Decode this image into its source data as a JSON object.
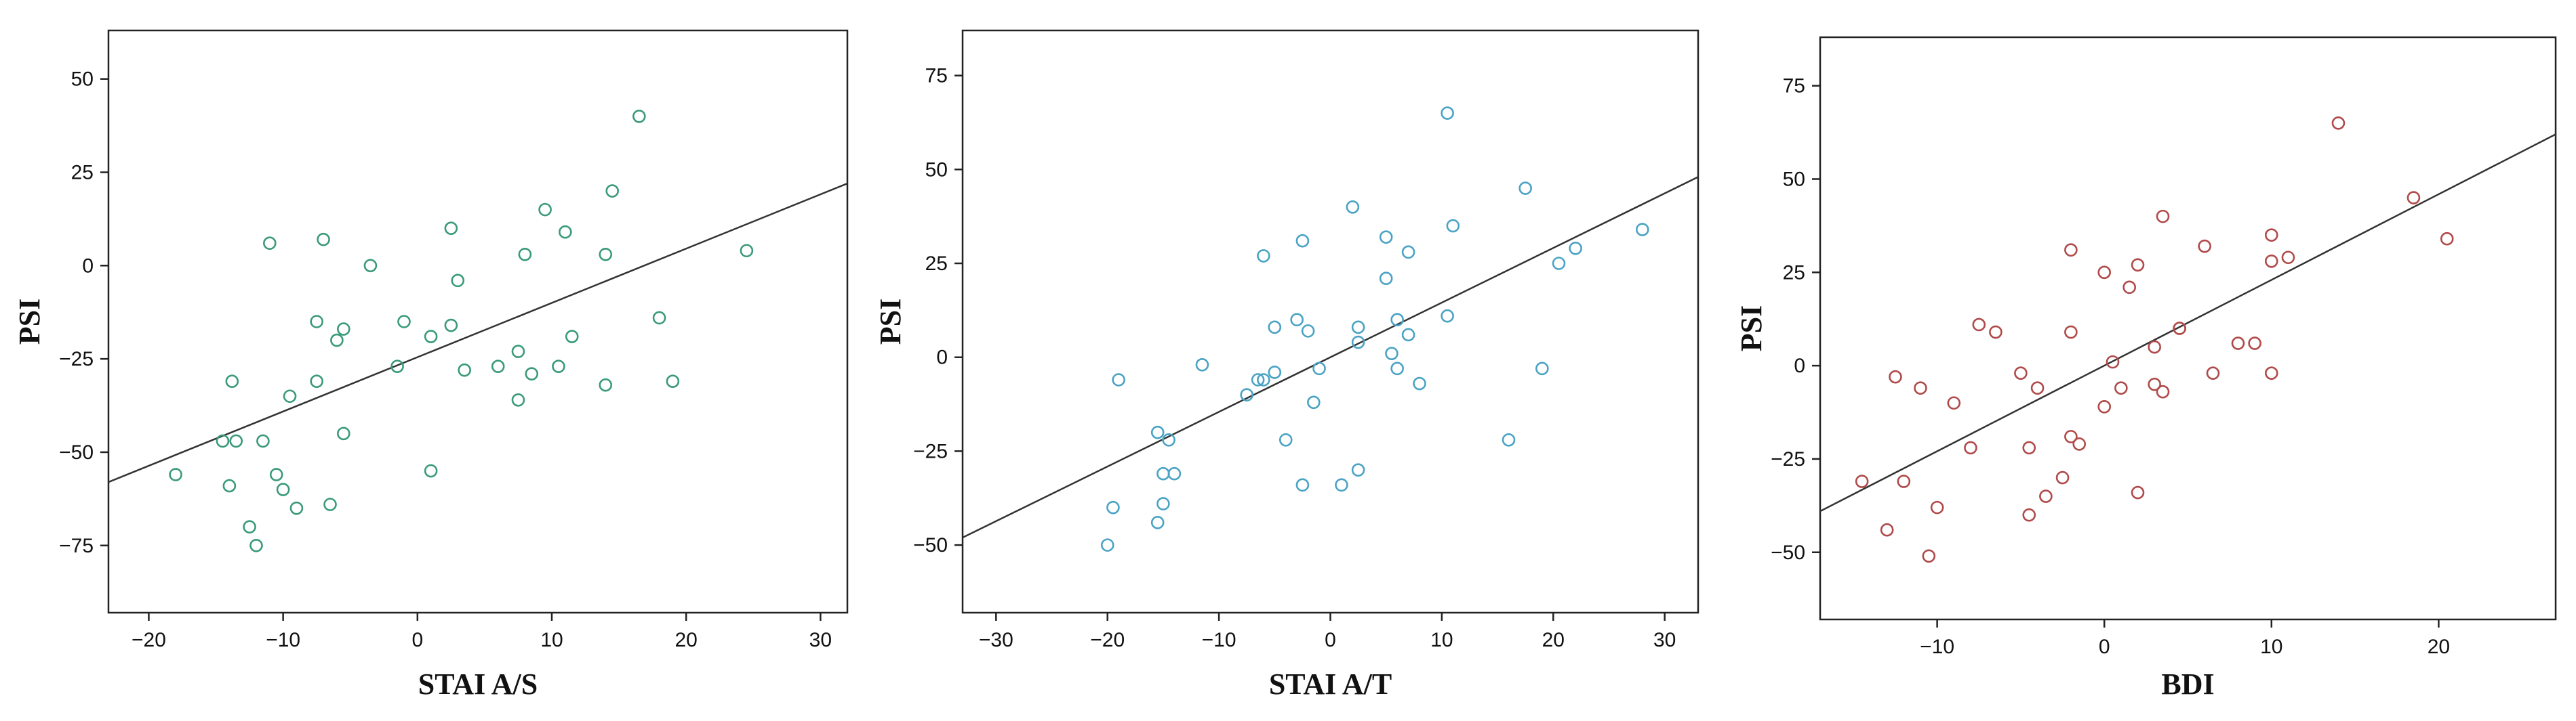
{
  "chart_data": [
    {
      "type": "scatter",
      "xlabel": "STAI A/S",
      "ylabel": "PSI",
      "xlim": [
        -23,
        32
      ],
      "ylim": [
        -93,
        63
      ],
      "x_ticks": [
        -20,
        -10,
        0,
        10,
        20,
        30
      ],
      "y_ticks": [
        -75,
        -50,
        -25,
        0,
        25,
        50
      ],
      "x_tick_labels": [
        "−20",
        "−10",
        "0",
        "10",
        "20",
        "30"
      ],
      "y_tick_labels": [
        "−75",
        "−50",
        "−25",
        "0",
        "25",
        "50"
      ],
      "marker_color": "#3a9a7a",
      "fit_line": {
        "x": [
          -23,
          32
        ],
        "y": [
          -58,
          22
        ]
      },
      "points": [
        {
          "x": -18,
          "y": -56
        },
        {
          "x": -14.5,
          "y": -47
        },
        {
          "x": -14,
          "y": -59
        },
        {
          "x": -13.8,
          "y": -31
        },
        {
          "x": -13.5,
          "y": -47
        },
        {
          "x": -12.5,
          "y": -70
        },
        {
          "x": -12,
          "y": -75
        },
        {
          "x": -11.5,
          "y": -47
        },
        {
          "x": -11,
          "y": 6
        },
        {
          "x": -10.5,
          "y": -56
        },
        {
          "x": -10,
          "y": -60
        },
        {
          "x": -9.5,
          "y": -35
        },
        {
          "x": -9,
          "y": -65
        },
        {
          "x": -7.5,
          "y": -31
        },
        {
          "x": -7.5,
          "y": -15
        },
        {
          "x": -7,
          "y": 7
        },
        {
          "x": -6.5,
          "y": -64
        },
        {
          "x": -6,
          "y": -20
        },
        {
          "x": -5.5,
          "y": -17
        },
        {
          "x": -5.5,
          "y": -45
        },
        {
          "x": -3.5,
          "y": 0
        },
        {
          "x": -1.5,
          "y": -27
        },
        {
          "x": -1,
          "y": -15
        },
        {
          "x": 1,
          "y": -19
        },
        {
          "x": 1,
          "y": -55
        },
        {
          "x": 2.5,
          "y": -16
        },
        {
          "x": 2.5,
          "y": 10
        },
        {
          "x": 3,
          "y": -4
        },
        {
          "x": 3.5,
          "y": -28
        },
        {
          "x": 6,
          "y": -27
        },
        {
          "x": 7.5,
          "y": -36
        },
        {
          "x": 7.5,
          "y": -23
        },
        {
          "x": 8,
          "y": 3
        },
        {
          "x": 8.5,
          "y": -29
        },
        {
          "x": 9.5,
          "y": 15
        },
        {
          "x": 10.5,
          "y": -27
        },
        {
          "x": 11,
          "y": 9
        },
        {
          "x": 11.5,
          "y": -19
        },
        {
          "x": 14,
          "y": -32
        },
        {
          "x": 14,
          "y": 3
        },
        {
          "x": 14.5,
          "y": 20
        },
        {
          "x": 16.5,
          "y": 40
        },
        {
          "x": 18,
          "y": -14
        },
        {
          "x": 19,
          "y": -31
        },
        {
          "x": 24.5,
          "y": 4
        }
      ]
    },
    {
      "type": "scatter",
      "xlabel": "STAI A/T",
      "ylabel": "PSI",
      "xlim": [
        -33,
        33
      ],
      "ylim": [
        -68,
        87
      ],
      "x_ticks": [
        -30,
        -20,
        -10,
        0,
        10,
        20,
        30
      ],
      "y_ticks": [
        -50,
        -25,
        0,
        25,
        50,
        75
      ],
      "x_tick_labels": [
        "−30",
        "−20",
        "−10",
        "0",
        "10",
        "20",
        "30"
      ],
      "y_tick_labels": [
        "−50",
        "−25",
        "0",
        "25",
        "50",
        "75"
      ],
      "marker_color": "#4aa3c4",
      "fit_line": {
        "x": [
          -33,
          33
        ],
        "y": [
          -48,
          48
        ]
      },
      "points": [
        {
          "x": -20,
          "y": -50
        },
        {
          "x": -19.5,
          "y": -40
        },
        {
          "x": -19,
          "y": -6
        },
        {
          "x": -15.5,
          "y": -44
        },
        {
          "x": -15.5,
          "y": -20
        },
        {
          "x": -15,
          "y": -31
        },
        {
          "x": -15,
          "y": -39
        },
        {
          "x": -14.5,
          "y": -22
        },
        {
          "x": -14,
          "y": -31
        },
        {
          "x": -11.5,
          "y": -2
        },
        {
          "x": -7.5,
          "y": -10
        },
        {
          "x": -6.5,
          "y": -6
        },
        {
          "x": -6,
          "y": -6
        },
        {
          "x": -6,
          "y": 27
        },
        {
          "x": -5,
          "y": -4
        },
        {
          "x": -5,
          "y": 8
        },
        {
          "x": -4,
          "y": -22
        },
        {
          "x": -3,
          "y": 10
        },
        {
          "x": -2.5,
          "y": -34
        },
        {
          "x": -2.5,
          "y": 31
        },
        {
          "x": -2,
          "y": 7
        },
        {
          "x": -1.5,
          "y": -12
        },
        {
          "x": -1,
          "y": -3
        },
        {
          "x": 1,
          "y": -34
        },
        {
          "x": 2,
          "y": 40
        },
        {
          "x": 2.5,
          "y": 4
        },
        {
          "x": 2.5,
          "y": 8
        },
        {
          "x": 2.5,
          "y": -30
        },
        {
          "x": 5,
          "y": 32
        },
        {
          "x": 5,
          "y": 21
        },
        {
          "x": 5.5,
          "y": 1
        },
        {
          "x": 6,
          "y": -3
        },
        {
          "x": 6,
          "y": 10
        },
        {
          "x": 7,
          "y": 6
        },
        {
          "x": 7,
          "y": 28
        },
        {
          "x": 8,
          "y": -7
        },
        {
          "x": 10.5,
          "y": 11
        },
        {
          "x": 10.5,
          "y": 65
        },
        {
          "x": 11,
          "y": 35
        },
        {
          "x": 16,
          "y": -22
        },
        {
          "x": 17.5,
          "y": 45
        },
        {
          "x": 19,
          "y": -3
        },
        {
          "x": 20.5,
          "y": 25
        },
        {
          "x": 22,
          "y": 29
        },
        {
          "x": 28,
          "y": 34
        }
      ]
    },
    {
      "type": "scatter",
      "xlabel": "BDI",
      "ylabel": "PSI",
      "xlim": [
        -17,
        27
      ],
      "ylim": [
        -68,
        88
      ],
      "x_ticks": [
        -10,
        0,
        10,
        20
      ],
      "y_ticks": [
        -50,
        -25,
        0,
        25,
        50,
        75
      ],
      "x_tick_labels": [
        "−10",
        "0",
        "10",
        "20"
      ],
      "y_tick_labels": [
        "−50",
        "−25",
        "0",
        "25",
        "50",
        "75"
      ],
      "marker_color": "#b04a4a",
      "fit_line": {
        "x": [
          -17,
          27
        ],
        "y": [
          -39,
          62
        ]
      },
      "points": [
        {
          "x": -14.5,
          "y": -31
        },
        {
          "x": -13,
          "y": -44
        },
        {
          "x": -12.5,
          "y": -3
        },
        {
          "x": -12,
          "y": -31
        },
        {
          "x": -11,
          "y": -6
        },
        {
          "x": -10.5,
          "y": -51
        },
        {
          "x": -10,
          "y": -38
        },
        {
          "x": -9,
          "y": -10
        },
        {
          "x": -8,
          "y": -22
        },
        {
          "x": -7.5,
          "y": 11
        },
        {
          "x": -6.5,
          "y": 9
        },
        {
          "x": -5,
          "y": -2
        },
        {
          "x": -4.5,
          "y": -22
        },
        {
          "x": -4.5,
          "y": -40
        },
        {
          "x": -4,
          "y": -6
        },
        {
          "x": -3.5,
          "y": -35
        },
        {
          "x": -2.5,
          "y": -30
        },
        {
          "x": -2,
          "y": -19
        },
        {
          "x": -2,
          "y": 31
        },
        {
          "x": -2,
          "y": 9
        },
        {
          "x": -1.5,
          "y": -21
        },
        {
          "x": 0,
          "y": 25
        },
        {
          "x": 0,
          "y": -11
        },
        {
          "x": 0.5,
          "y": 1
        },
        {
          "x": 1,
          "y": -6
        },
        {
          "x": 1.5,
          "y": 21
        },
        {
          "x": 2,
          "y": 27
        },
        {
          "x": 2,
          "y": -34
        },
        {
          "x": 3,
          "y": 5
        },
        {
          "x": 3,
          "y": -5
        },
        {
          "x": 3.5,
          "y": 40
        },
        {
          "x": 3.5,
          "y": -7
        },
        {
          "x": 4.5,
          "y": 10
        },
        {
          "x": 4.5,
          "y": 10
        },
        {
          "x": 6,
          "y": 32
        },
        {
          "x": 6.5,
          "y": -2
        },
        {
          "x": 8,
          "y": 6
        },
        {
          "x": 9,
          "y": 6
        },
        {
          "x": 10,
          "y": 35
        },
        {
          "x": 10,
          "y": 28
        },
        {
          "x": 10,
          "y": -2
        },
        {
          "x": 11,
          "y": 29
        },
        {
          "x": 14,
          "y": 65
        },
        {
          "x": 18.5,
          "y": 45
        },
        {
          "x": 20.5,
          "y": 34
        }
      ]
    }
  ]
}
